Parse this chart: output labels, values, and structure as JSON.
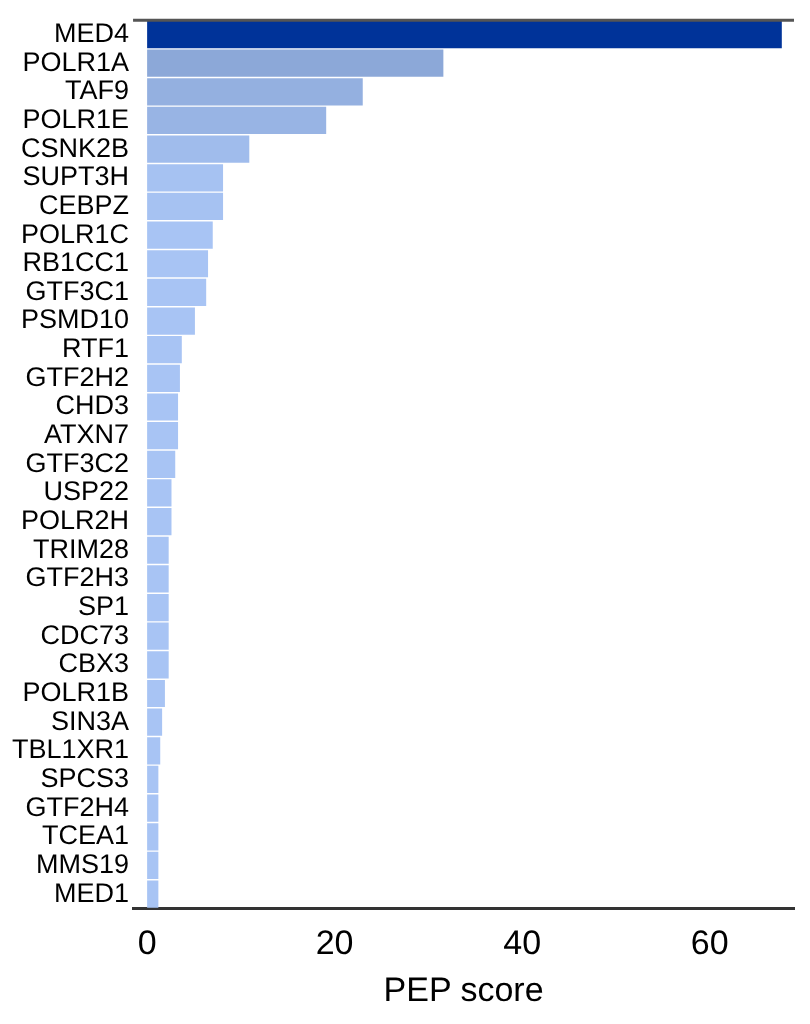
{
  "chart_data": {
    "type": "bar",
    "orientation": "horizontal",
    "xlabel": "PEP score",
    "categories": [
      "MED4",
      "POLR1A",
      "TAF9",
      "POLR1E",
      "CSNK2B",
      "SUPT3H",
      "CEBPZ",
      "POLR1C",
      "RB1CC1",
      "GTF3C1",
      "PSMD10",
      "RTF1",
      "GTF2H2",
      "CHD3",
      "ATXN7",
      "GTF3C2",
      "USP22",
      "POLR2H",
      "TRIM28",
      "GTF2H3",
      "SP1",
      "CDC73",
      "CBX3",
      "POLR1B",
      "SIN3A",
      "TBL1XR1",
      "SPCS3",
      "GTF2H4",
      "TCEA1",
      "MMS19",
      "MED1"
    ],
    "values": [
      67.7,
      31.6,
      23.0,
      19.1,
      10.9,
      8.1,
      8.1,
      7.0,
      6.5,
      6.3,
      5.1,
      3.7,
      3.5,
      3.3,
      3.3,
      3.0,
      2.6,
      2.6,
      2.3,
      2.3,
      2.3,
      2.3,
      2.3,
      1.9,
      1.6,
      1.4,
      1.2,
      1.2,
      1.2,
      1.2,
      1.2
    ],
    "colors": [
      "#003399",
      "#8ca8d8",
      "#94b0e0",
      "#98b4e4",
      "#a0bcec",
      "#a6c2f2",
      "#a6c2f2",
      "#a8c4f4",
      "#a8c4f4",
      "#a8c4f4",
      "#a8c4f4",
      "#a8c4f4",
      "#a8c4f4",
      "#a8c4f4",
      "#a8c4f4",
      "#a8c4f4",
      "#a8c4f4",
      "#a8c4f4",
      "#a8c4f4",
      "#a8c4f4",
      "#a8c4f4",
      "#a8c4f4",
      "#a8c4f4",
      "#a8c4f4",
      "#a8c4f4",
      "#a8c4f4",
      "#a8c4f4",
      "#a8c4f4",
      "#a8c4f4",
      "#a8c4f4",
      "#a8c4f4"
    ],
    "xlim": [
      -1.5,
      69
    ],
    "xticks": [
      0,
      20,
      40,
      60
    ],
    "grid": false,
    "legend": false
  }
}
